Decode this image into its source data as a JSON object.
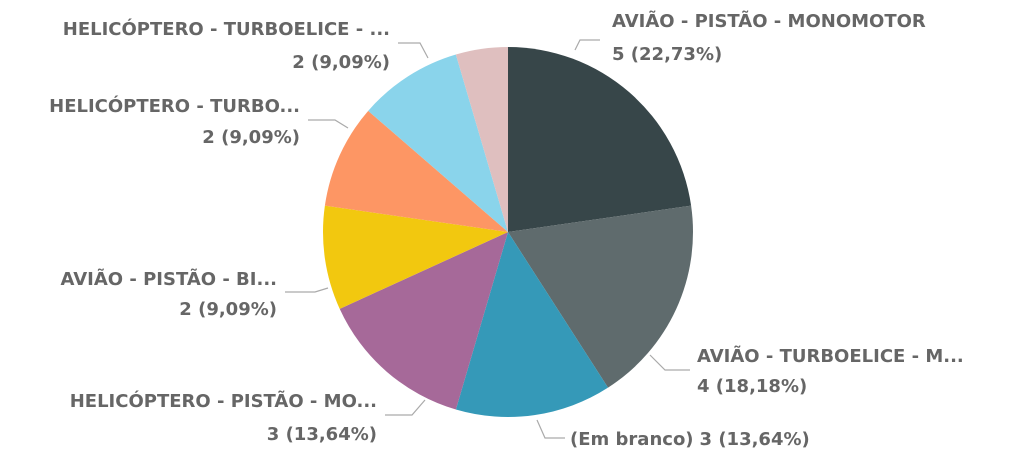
{
  "chart_data": {
    "type": "pie",
    "categories": [
      "AVIÃO - PISTÃO - MONOMOTOR",
      "AVIÃO - TURBOELICE - M...",
      "(Em branco)",
      "HELICÓPTERO - PISTÃO - MO...",
      "AVIÃO - PISTÃO - BI...",
      "HELICÓPTERO - TURBO...",
      "HELICÓPTERO - TURBOELICE - ...",
      null
    ],
    "values": [
      5,
      4,
      3,
      3,
      2,
      2,
      2,
      1
    ],
    "value_labels": [
      "5 (22,73%)",
      "4 (18,18%)",
      "3 (13,64%)",
      "3 (13,64%)",
      "2 (9,09%)",
      "2 (9,09%)",
      "2 (9,09%)",
      null
    ],
    "colors": [
      "#374649",
      "#5f6b6d",
      "#3599b8",
      "#a66999",
      "#f2c80f",
      "#fd9664",
      "#8ad4eb",
      "#dfbfbf"
    ]
  }
}
